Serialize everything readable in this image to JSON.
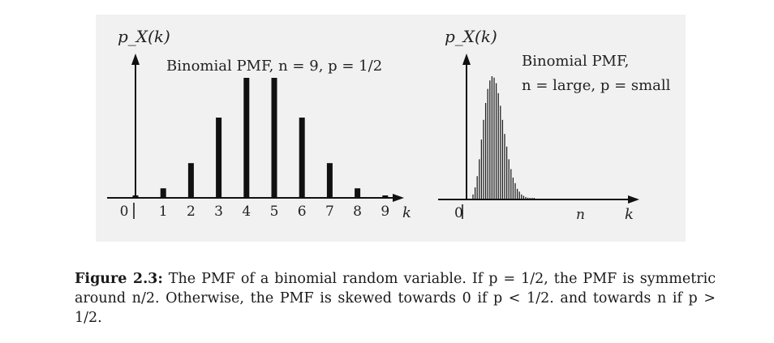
{
  "chart_data": [
    {
      "type": "bar",
      "ylabel": "p_X(k)",
      "xlabel": "k",
      "annotation": "Binomial PMF,  n = 9, p = 1/2",
      "categories": [
        "0",
        "1",
        "2",
        "3",
        "4",
        "5",
        "6",
        "7",
        "8",
        "9"
      ],
      "values": [
        0.002,
        0.018,
        0.07,
        0.164,
        0.246,
        0.246,
        0.164,
        0.07,
        0.018,
        0.002
      ],
      "grid": false
    },
    {
      "type": "bar",
      "ylabel": "p_X(k)",
      "xlabel": "k",
      "x_tick_labels": [
        "0",
        "n"
      ],
      "annotation_line1": "Binomial PMF,",
      "annotation_line2": "n = large, p = small",
      "values": [
        0.003,
        0.008,
        0.016,
        0.028,
        0.042,
        0.056,
        0.068,
        0.078,
        0.084,
        0.087,
        0.086,
        0.082,
        0.075,
        0.066,
        0.056,
        0.046,
        0.037,
        0.028,
        0.021,
        0.015,
        0.011,
        0.007,
        0.005,
        0.003,
        0.002,
        0.0012,
        0.0007,
        0.0004,
        0.0002,
        0.0001
      ],
      "grid": false
    }
  ],
  "caption": {
    "label": "Figure 2.3:",
    "text": " The PMF of a binomial random variable. If p = 1/2, the PMF is symmetric around n/2. Otherwise, the PMF is skewed towards 0 if p < 1/2. and towards n if p > 1/2."
  }
}
